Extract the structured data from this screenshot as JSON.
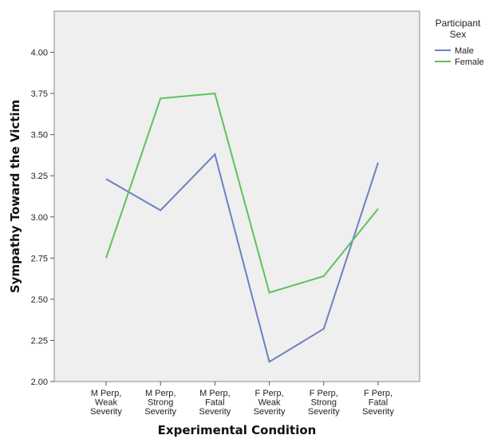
{
  "chart_data": {
    "type": "line",
    "title": "",
    "xlabel": "Experimental Condition",
    "ylabel": "Sympathy Toward the Victim",
    "categories": [
      [
        "M Perp,",
        "Weak",
        "Severity"
      ],
      [
        "M Perp,",
        "Strong",
        "Severity"
      ],
      [
        "M Perp,",
        "Fatal",
        "Severity"
      ],
      [
        "F Perp,",
        "Weak",
        "Severity"
      ],
      [
        "F Perp,",
        "Strong",
        "Severity"
      ],
      [
        "F Perp,",
        "Fatal",
        "Severity"
      ]
    ],
    "ylim": [
      2.0,
      4.25
    ],
    "yticks": [
      "2.00",
      "2.25",
      "2.50",
      "2.75",
      "3.00",
      "3.25",
      "3.50",
      "3.75",
      "4.00"
    ],
    "legend": {
      "title": [
        "Participant",
        "Sex"
      ],
      "placement": "right"
    },
    "series": [
      {
        "name": "Male",
        "color": "#6f7fc4",
        "values": [
          3.23,
          3.04,
          3.38,
          2.12,
          2.32,
          3.33
        ]
      },
      {
        "name": "Female",
        "color": "#5cc25e",
        "values": [
          2.75,
          3.72,
          3.75,
          2.54,
          2.64,
          3.05
        ]
      }
    ],
    "grid": false
  }
}
